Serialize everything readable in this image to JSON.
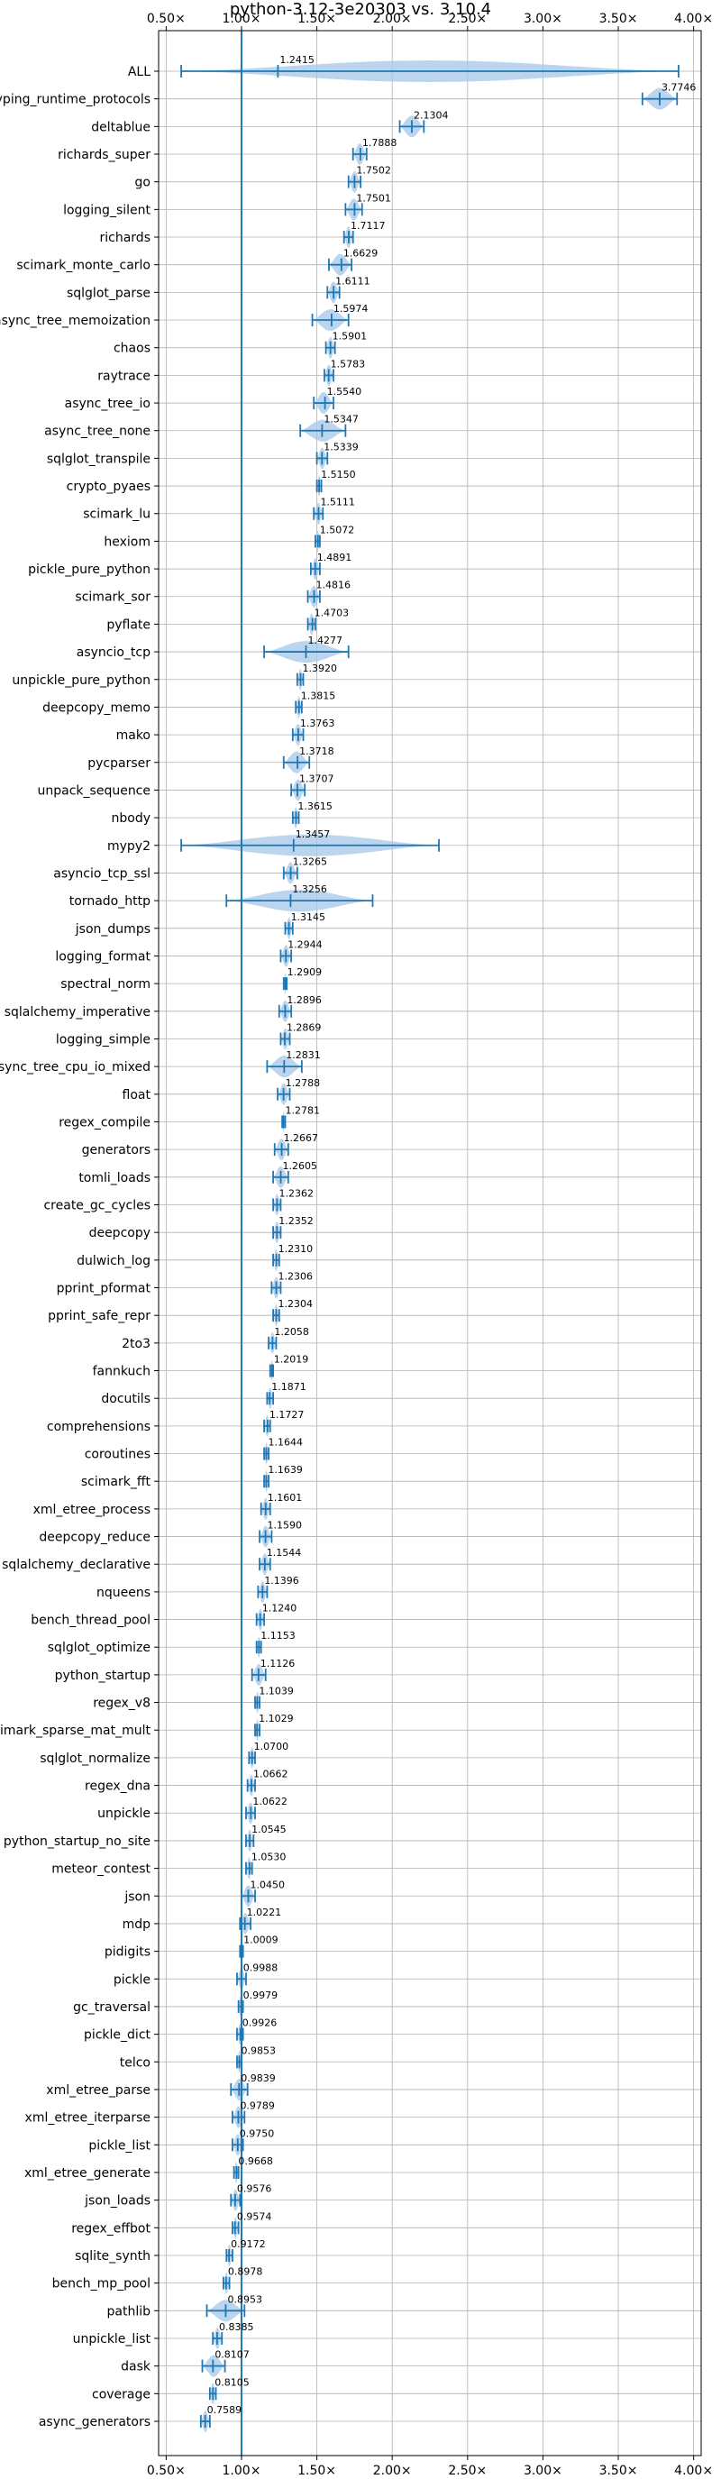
{
  "chart_data": {
    "type": "violin",
    "title": "python-3.12-3e20303 vs. 3.10.4",
    "xlabel": "",
    "ylabel": "",
    "xlim": [
      0.45,
      4.05
    ],
    "x_ticks": [
      0.5,
      1.0,
      1.5,
      2.0,
      2.5,
      3.0,
      3.5,
      4.0
    ],
    "x_tick_labels": [
      "0.50×",
      "1.00×",
      "1.50×",
      "2.00×",
      "2.50×",
      "3.00×",
      "3.50×",
      "4.00×"
    ],
    "reference_line": 1.0,
    "grid": true,
    "colors": {
      "violin": "#a6c7e8",
      "line": "#1f77b4",
      "grid": "#b0b0b0"
    },
    "categories": [
      "ALL",
      "typing_runtime_protocols",
      "deltablue",
      "richards_super",
      "go",
      "logging_silent",
      "richards",
      "scimark_monte_carlo",
      "sqlglot_parse",
      "async_tree_memoization",
      "chaos",
      "raytrace",
      "async_tree_io",
      "async_tree_none",
      "sqlglot_transpile",
      "crypto_pyaes",
      "scimark_lu",
      "hexiom",
      "pickle_pure_python",
      "scimark_sor",
      "pyflate",
      "asyncio_tcp",
      "unpickle_pure_python",
      "deepcopy_memo",
      "mako",
      "pycparser",
      "unpack_sequence",
      "nbody",
      "mypy2",
      "asyncio_tcp_ssl",
      "tornado_http",
      "json_dumps",
      "logging_format",
      "spectral_norm",
      "sqlalchemy_imperative",
      "logging_simple",
      "async_tree_cpu_io_mixed",
      "float",
      "regex_compile",
      "generators",
      "tomli_loads",
      "create_gc_cycles",
      "deepcopy",
      "dulwich_log",
      "pprint_pformat",
      "pprint_safe_repr",
      "2to3",
      "fannkuch",
      "docutils",
      "comprehensions",
      "coroutines",
      "scimark_fft",
      "xml_etree_process",
      "deepcopy_reduce",
      "sqlalchemy_declarative",
      "nqueens",
      "bench_thread_pool",
      "sqlglot_optimize",
      "python_startup",
      "regex_v8",
      "scimark_sparse_mat_mult",
      "sqlglot_normalize",
      "regex_dna",
      "unpickle",
      "python_startup_no_site",
      "meteor_contest",
      "json",
      "mdp",
      "pidigits",
      "pickle",
      "gc_traversal",
      "pickle_dict",
      "telco",
      "xml_etree_parse",
      "xml_etree_iterparse",
      "pickle_list",
      "xml_etree_generate",
      "json_loads",
      "regex_effbot",
      "sqlite_synth",
      "bench_mp_pool",
      "pathlib",
      "unpickle_list",
      "dask",
      "coverage",
      "async_generators"
    ],
    "values": [
      1.2415,
      3.7746,
      2.1304,
      1.7888,
      1.7502,
      1.7501,
      1.7117,
      1.6629,
      1.6111,
      1.5974,
      1.5901,
      1.5783,
      1.554,
      1.5347,
      1.5339,
      1.515,
      1.5111,
      1.5072,
      1.4891,
      1.4816,
      1.4703,
      1.4277,
      1.392,
      1.3815,
      1.3763,
      1.3718,
      1.3707,
      1.3615,
      1.3457,
      1.3265,
      1.3256,
      1.3145,
      1.2944,
      1.2909,
      1.2896,
      1.2869,
      1.2831,
      1.2788,
      1.2781,
      1.2667,
      1.2605,
      1.2362,
      1.2352,
      1.231,
      1.2306,
      1.2304,
      1.2058,
      1.2019,
      1.1871,
      1.1727,
      1.1644,
      1.1639,
      1.1601,
      1.159,
      1.1544,
      1.1396,
      1.124,
      1.1153,
      1.1126,
      1.1039,
      1.1029,
      1.07,
      1.0662,
      1.0622,
      1.0545,
      1.053,
      1.045,
      1.0221,
      1.0009,
      0.9988,
      0.9979,
      0.9926,
      0.9853,
      0.9839,
      0.9789,
      0.975,
      0.9668,
      0.9576,
      0.9574,
      0.9172,
      0.8978,
      0.8953,
      0.8385,
      0.8107,
      0.8105,
      0.7589
    ],
    "value_labels": [
      "1.2415",
      "3.7746",
      "2.1304",
      "1.7888",
      "1.7502",
      "1.7501",
      "1.7117",
      "1.6629",
      "1.6111",
      "1.5974",
      "1.5901",
      "1.5783",
      "1.5540",
      "1.5347",
      "1.5339",
      "1.5150",
      "1.5111",
      "1.5072",
      "1.4891",
      "1.4816",
      "1.4703",
      "1.4277",
      "1.3920",
      "1.3815",
      "1.3763",
      "1.3718",
      "1.3707",
      "1.3615",
      "1.3457",
      "1.3265",
      "1.3256",
      "1.3145",
      "1.2944",
      "1.2909",
      "1.2896",
      "1.2869",
      "1.2831",
      "1.2788",
      "1.2781",
      "1.2667",
      "1.2605",
      "1.2362",
      "1.2352",
      "1.2310",
      "1.2306",
      "1.2304",
      "1.2058",
      "1.2019",
      "1.1871",
      "1.1727",
      "1.1644",
      "1.1639",
      "1.1601",
      "1.1590",
      "1.1544",
      "1.1396",
      "1.1240",
      "1.1153",
      "1.1126",
      "1.1039",
      "1.1029",
      "1.0700",
      "1.0662",
      "1.0622",
      "1.0545",
      "1.0530",
      "1.0450",
      "1.0221",
      "1.0009",
      "0.9988",
      "0.9979",
      "0.9926",
      "0.9853",
      "0.9839",
      "0.9789",
      "0.9750",
      "0.9668",
      "0.9576",
      "0.9574",
      "0.9172",
      "0.8978",
      "0.8953",
      "0.8385",
      "0.8107",
      "0.8105",
      "0.7589"
    ],
    "ranges": [
      [
        0.6,
        3.9
      ],
      [
        3.66,
        3.89
      ],
      [
        2.05,
        2.21
      ],
      [
        1.74,
        1.83
      ],
      [
        1.71,
        1.79
      ],
      [
        1.69,
        1.8
      ],
      [
        1.68,
        1.74
      ],
      [
        1.58,
        1.73
      ],
      [
        1.57,
        1.65
      ],
      [
        1.47,
        1.71
      ],
      [
        1.56,
        1.62
      ],
      [
        1.55,
        1.61
      ],
      [
        1.48,
        1.61
      ],
      [
        1.39,
        1.69
      ],
      [
        1.5,
        1.57
      ],
      [
        1.5,
        1.53
      ],
      [
        1.48,
        1.54
      ],
      [
        1.49,
        1.52
      ],
      [
        1.46,
        1.52
      ],
      [
        1.44,
        1.52
      ],
      [
        1.44,
        1.49
      ],
      [
        1.15,
        1.71
      ],
      [
        1.37,
        1.41
      ],
      [
        1.36,
        1.4
      ],
      [
        1.34,
        1.41
      ],
      [
        1.28,
        1.45
      ],
      [
        1.33,
        1.42
      ],
      [
        1.34,
        1.38
      ],
      [
        0.6,
        2.31
      ],
      [
        1.28,
        1.37
      ],
      [
        0.9,
        1.87
      ],
      [
        1.29,
        1.34
      ],
      [
        1.26,
        1.33
      ],
      [
        1.28,
        1.3
      ],
      [
        1.25,
        1.33
      ],
      [
        1.26,
        1.32
      ],
      [
        1.17,
        1.4
      ],
      [
        1.24,
        1.32
      ],
      [
        1.27,
        1.29
      ],
      [
        1.22,
        1.31
      ],
      [
        1.21,
        1.31
      ],
      [
        1.21,
        1.26
      ],
      [
        1.21,
        1.26
      ],
      [
        1.21,
        1.25
      ],
      [
        1.2,
        1.26
      ],
      [
        1.21,
        1.25
      ],
      [
        1.18,
        1.23
      ],
      [
        1.19,
        1.21
      ],
      [
        1.17,
        1.21
      ],
      [
        1.15,
        1.19
      ],
      [
        1.15,
        1.18
      ],
      [
        1.15,
        1.18
      ],
      [
        1.13,
        1.19
      ],
      [
        1.12,
        1.2
      ],
      [
        1.12,
        1.19
      ],
      [
        1.11,
        1.17
      ],
      [
        1.1,
        1.15
      ],
      [
        1.1,
        1.13
      ],
      [
        1.07,
        1.16
      ],
      [
        1.09,
        1.12
      ],
      [
        1.09,
        1.12
      ],
      [
        1.05,
        1.09
      ],
      [
        1.04,
        1.09
      ],
      [
        1.03,
        1.09
      ],
      [
        1.03,
        1.08
      ],
      [
        1.03,
        1.07
      ],
      [
        1.0,
        1.09
      ],
      [
        0.99,
        1.06
      ],
      [
        0.99,
        1.01
      ],
      [
        0.97,
        1.03
      ],
      [
        0.98,
        1.01
      ],
      [
        0.97,
        1.01
      ],
      [
        0.97,
        1.0
      ],
      [
        0.93,
        1.04
      ],
      [
        0.94,
        1.02
      ],
      [
        0.94,
        1.01
      ],
      [
        0.95,
        0.98
      ],
      [
        0.93,
        0.99
      ],
      [
        0.94,
        0.98
      ],
      [
        0.9,
        0.94
      ],
      [
        0.88,
        0.92
      ],
      [
        0.77,
        1.02
      ],
      [
        0.81,
        0.87
      ],
      [
        0.74,
        0.89
      ],
      [
        0.79,
        0.83
      ],
      [
        0.73,
        0.79
      ]
    ]
  }
}
